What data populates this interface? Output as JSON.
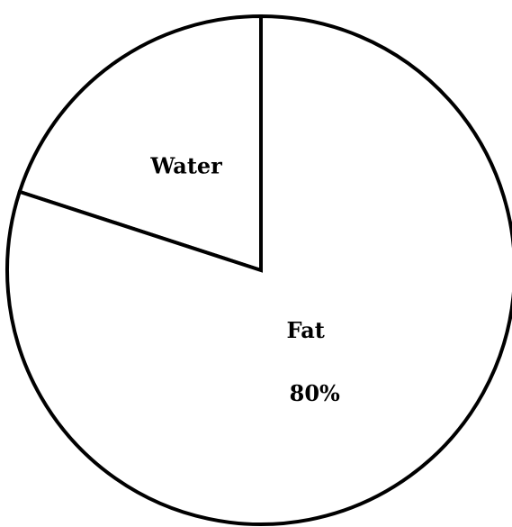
{
  "chart_data": {
    "type": "pie",
    "categories": [
      "Water",
      "Fat"
    ],
    "values": [
      20,
      80
    ],
    "value_labels": [
      null,
      "80%"
    ],
    "color": "#ffffff"
  }
}
